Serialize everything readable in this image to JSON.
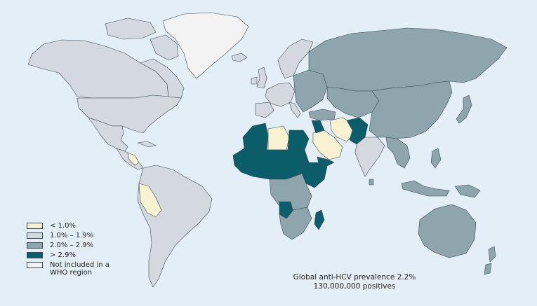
{
  "colors": {
    "ocean": "#e4eef6",
    "lt1": "#f6f2d2",
    "r1to19": "#d3d9de",
    "r2to29": "#8ea5ae",
    "gt29": "#0b5d69",
    "not_included": "#f3f3f3",
    "border": "#3a4a55"
  },
  "legend": [
    {
      "label": "< 1.0%",
      "category": "lt1"
    },
    {
      "label": "1.0% – 1.9%",
      "category": "r1to19"
    },
    {
      "label": "2.0% – 2.9%",
      "category": "r2to29"
    },
    {
      "label": "> 2.9%",
      "category": "gt29"
    },
    {
      "label": "Not included in a\nWHO region",
      "category": "not_included"
    }
  ],
  "caption": {
    "line1": "Global anti-HCV prevalence 2.2%",
    "line2": "130,000,000 positives"
  },
  "regions": [
    {
      "name": "north-america-west",
      "category": "r1to19"
    },
    {
      "name": "canada-east",
      "category": "r1to19"
    },
    {
      "name": "usa",
      "category": "r1to19"
    },
    {
      "name": "mexico",
      "category": "r1to19"
    },
    {
      "name": "central-america",
      "category": "r1to19"
    },
    {
      "name": "central-america-low",
      "category": "lt1"
    },
    {
      "name": "cuba",
      "category": "r1to19"
    },
    {
      "name": "arctic-islands",
      "category": "r1to19"
    },
    {
      "name": "baffin-island",
      "category": "r1to19"
    },
    {
      "name": "greenland",
      "category": "not_included"
    },
    {
      "name": "iceland",
      "category": "r1to19"
    },
    {
      "name": "south-america",
      "category": "r1to19"
    },
    {
      "name": "peru",
      "category": "lt1"
    },
    {
      "name": "uk",
      "category": "r1to19"
    },
    {
      "name": "ireland",
      "category": "r1to19"
    },
    {
      "name": "scandinavia",
      "category": "r1to19"
    },
    {
      "name": "western-europe",
      "category": "r1to19"
    },
    {
      "name": "iberia",
      "category": "r1to19"
    },
    {
      "name": "italy",
      "category": "r1to19"
    },
    {
      "name": "eastern-europe",
      "category": "r2to29"
    },
    {
      "name": "russia",
      "category": "r2to29"
    },
    {
      "name": "central-asia",
      "category": "r2to29"
    },
    {
      "name": "turkey",
      "category": "r2to29"
    },
    {
      "name": "iran",
      "category": "lt1"
    },
    {
      "name": "arabia",
      "category": "lt1"
    },
    {
      "name": "levant",
      "category": "gt29"
    },
    {
      "name": "yemen",
      "category": "gt29"
    },
    {
      "name": "afghanistan-pakistan",
      "category": "gt29"
    },
    {
      "name": "india",
      "category": "r1to19"
    },
    {
      "name": "china",
      "category": "r2to29"
    },
    {
      "name": "southeast-asia",
      "category": "r2to29"
    },
    {
      "name": "japan",
      "category": "r2to29"
    },
    {
      "name": "philippines",
      "category": "r2to29"
    },
    {
      "name": "indonesia",
      "category": "r2to29"
    },
    {
      "name": "new-guinea",
      "category": "r2to29"
    },
    {
      "name": "australia",
      "category": "r2to29"
    },
    {
      "name": "new-zealand",
      "category": "r2to29"
    },
    {
      "name": "north-africa-west",
      "category": "gt29"
    },
    {
      "name": "libya",
      "category": "lt1"
    },
    {
      "name": "egypt",
      "category": "gt29"
    },
    {
      "name": "sahel",
      "category": "gt29"
    },
    {
      "name": "horn-of-africa",
      "category": "gt29"
    },
    {
      "name": "central-africa",
      "category": "r2to29"
    },
    {
      "name": "angola",
      "category": "gt29"
    },
    {
      "name": "southern-africa",
      "category": "r2to29"
    },
    {
      "name": "madagascar",
      "category": "gt29"
    },
    {
      "name": "sri-lanka",
      "category": "r2to29"
    }
  ]
}
